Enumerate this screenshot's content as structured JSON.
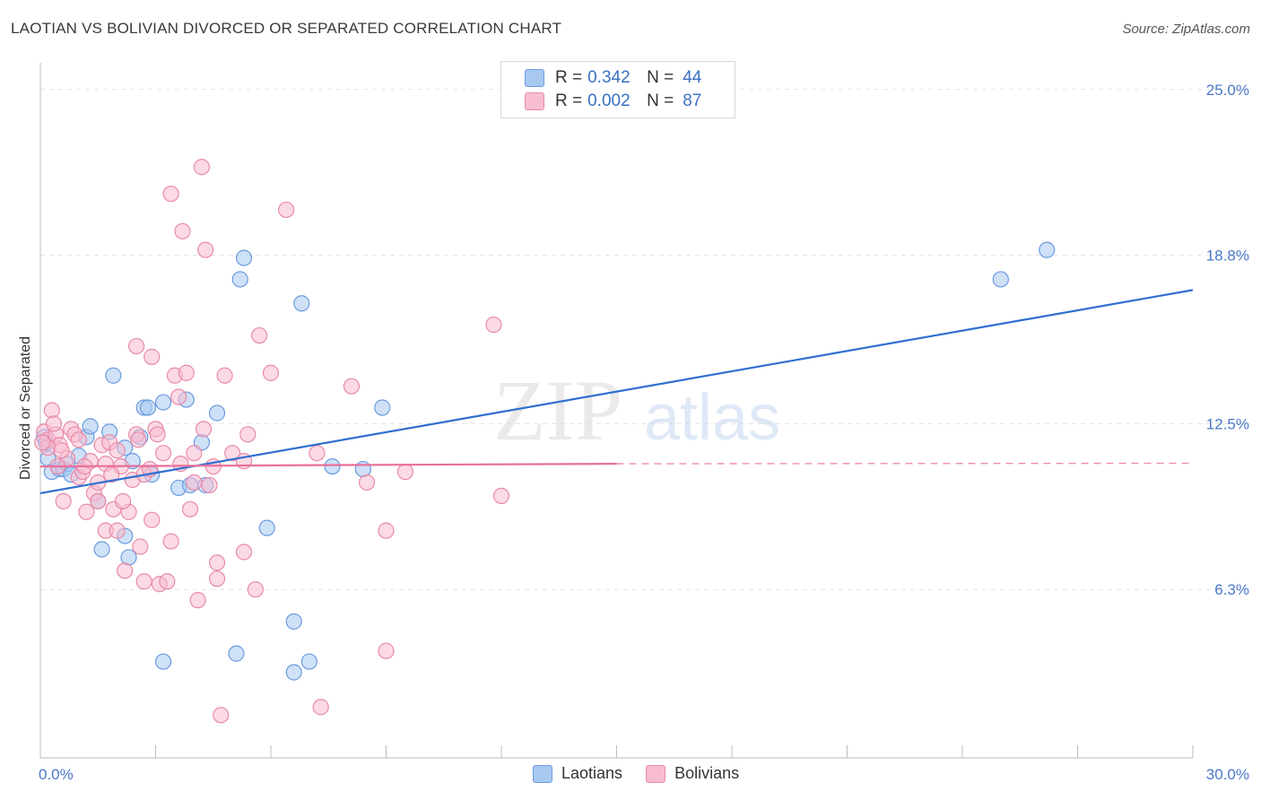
{
  "header": {
    "title": "LAOTIAN VS BOLIVIAN DIVORCED OR SEPARATED CORRELATION CHART",
    "source": "Source: ZipAtlas.com"
  },
  "legend": {
    "rows": [
      {
        "r_label": "R =",
        "r_value": "0.342",
        "n_label": "N =",
        "n_value": "44",
        "color": "#a8c8f0",
        "border": "#6a9be0"
      },
      {
        "r_label": "R =",
        "r_value": "0.002",
        "n_label": "N =",
        "n_value": "87",
        "color": "#f8bcd0",
        "border": "#e88aa8"
      }
    ],
    "bottom": [
      {
        "label": "Laotians",
        "color": "#a8c8f0",
        "border": "#6a9be0"
      },
      {
        "label": "Bolivians",
        "color": "#f8bcd0",
        "border": "#e88aa8"
      }
    ]
  },
  "watermark": {
    "zip": "ZIP",
    "atlas": "atlas"
  },
  "chart_data": {
    "type": "scatter",
    "title": "LAOTIAN VS BOLIVIAN DIVORCED OR SEPARATED CORRELATION CHART",
    "xlabel": "",
    "ylabel": "Divorced or Separated",
    "xlim": [
      0,
      30
    ],
    "ylim": [
      0,
      26
    ],
    "x_tick_labels": [
      "0.0%",
      "30.0%"
    ],
    "y_ticks": [
      6.3,
      12.5,
      18.8,
      25.0
    ],
    "y_tick_labels": [
      "6.3%",
      "12.5%",
      "18.8%",
      "25.0%"
    ],
    "grid": true,
    "legend_position": "top-center",
    "series": [
      {
        "name": "Laotians",
        "color": "#6a9be0",
        "fill": "#a8c8f0",
        "trend": {
          "x": [
            0,
            30
          ],
          "y": [
            9.9,
            17.5
          ],
          "color": "#2f6fd0"
        },
        "points": [
          [
            0.2,
            11.2
          ],
          [
            0.3,
            10.7
          ],
          [
            0.5,
            10.8
          ],
          [
            0.6,
            10.8
          ],
          [
            0.7,
            11.0
          ],
          [
            0.8,
            10.6
          ],
          [
            1.0,
            11.3
          ],
          [
            1.2,
            12.0
          ],
          [
            1.3,
            12.4
          ],
          [
            1.5,
            9.6
          ],
          [
            1.6,
            7.8
          ],
          [
            1.8,
            12.2
          ],
          [
            1.9,
            14.3
          ],
          [
            2.2,
            11.6
          ],
          [
            2.2,
            8.3
          ],
          [
            2.3,
            7.5
          ],
          [
            2.4,
            11.1
          ],
          [
            2.6,
            12.0
          ],
          [
            2.7,
            13.1
          ],
          [
            2.8,
            13.1
          ],
          [
            2.9,
            10.6
          ],
          [
            3.2,
            3.6
          ],
          [
            3.2,
            13.3
          ],
          [
            3.6,
            10.1
          ],
          [
            3.8,
            13.4
          ],
          [
            3.9,
            10.2
          ],
          [
            4.2,
            11.8
          ],
          [
            4.3,
            10.2
          ],
          [
            4.6,
            12.9
          ],
          [
            5.1,
            3.9
          ],
          [
            5.2,
            17.9
          ],
          [
            5.3,
            18.7
          ],
          [
            5.9,
            8.6
          ],
          [
            6.6,
            5.1
          ],
          [
            6.6,
            3.2
          ],
          [
            6.8,
            17.0
          ],
          [
            7.0,
            3.6
          ],
          [
            7.6,
            10.9
          ],
          [
            8.4,
            10.8
          ],
          [
            8.9,
            13.1
          ],
          [
            25.0,
            17.9
          ],
          [
            26.2,
            19.0
          ],
          [
            0.1,
            12.0
          ],
          [
            0.15,
            11.8
          ]
        ]
      },
      {
        "name": "Bolivians",
        "color": "#e88aa8",
        "fill": "#f8bcd0",
        "trend": {
          "x": [
            0,
            15
          ],
          "y": [
            10.9,
            11.0
          ],
          "dashed_to": 30,
          "color": "#e8709a"
        },
        "points": [
          [
            0.1,
            12.2
          ],
          [
            0.2,
            11.9
          ],
          [
            0.3,
            13.0
          ],
          [
            0.4,
            12.1
          ],
          [
            0.5,
            11.7
          ],
          [
            0.6,
            9.6
          ],
          [
            0.7,
            11.2
          ],
          [
            0.8,
            12.3
          ],
          [
            0.9,
            12.1
          ],
          [
            1.0,
            10.5
          ],
          [
            1.0,
            11.9
          ],
          [
            1.1,
            10.7
          ],
          [
            1.2,
            9.2
          ],
          [
            1.3,
            11.1
          ],
          [
            1.4,
            9.9
          ],
          [
            1.5,
            10.3
          ],
          [
            1.5,
            9.6
          ],
          [
            1.6,
            11.7
          ],
          [
            1.7,
            11.0
          ],
          [
            1.7,
            8.5
          ],
          [
            1.8,
            11.8
          ],
          [
            1.9,
            9.3
          ],
          [
            2.0,
            11.5
          ],
          [
            2.0,
            8.5
          ],
          [
            2.1,
            10.9
          ],
          [
            2.2,
            7.0
          ],
          [
            2.3,
            9.2
          ],
          [
            2.4,
            10.4
          ],
          [
            2.5,
            12.1
          ],
          [
            2.5,
            15.4
          ],
          [
            2.6,
            7.9
          ],
          [
            2.7,
            10.6
          ],
          [
            2.7,
            6.6
          ],
          [
            2.9,
            15.0
          ],
          [
            2.9,
            8.9
          ],
          [
            3.0,
            12.3
          ],
          [
            3.1,
            6.5
          ],
          [
            3.2,
            11.4
          ],
          [
            3.3,
            6.6
          ],
          [
            3.4,
            21.1
          ],
          [
            3.4,
            8.1
          ],
          [
            3.5,
            14.3
          ],
          [
            3.6,
            13.5
          ],
          [
            3.7,
            19.7
          ],
          [
            3.8,
            14.4
          ],
          [
            3.9,
            9.3
          ],
          [
            4.0,
            11.4
          ],
          [
            4.0,
            10.3
          ],
          [
            4.1,
            5.9
          ],
          [
            4.2,
            22.1
          ],
          [
            4.3,
            19.0
          ],
          [
            4.4,
            10.2
          ],
          [
            4.5,
            10.9
          ],
          [
            4.6,
            7.3
          ],
          [
            4.6,
            6.7
          ],
          [
            4.7,
            1.6
          ],
          [
            4.8,
            14.3
          ],
          [
            5.0,
            11.4
          ],
          [
            5.3,
            11.1
          ],
          [
            5.3,
            7.7
          ],
          [
            5.4,
            12.1
          ],
          [
            5.6,
            6.3
          ],
          [
            5.7,
            15.8
          ],
          [
            6.0,
            14.4
          ],
          [
            6.4,
            20.5
          ],
          [
            7.2,
            11.4
          ],
          [
            7.3,
            1.9
          ],
          [
            8.1,
            13.9
          ],
          [
            8.5,
            10.3
          ],
          [
            9.0,
            8.5
          ],
          [
            9.0,
            4.0
          ],
          [
            9.5,
            10.7
          ],
          [
            11.8,
            16.2
          ],
          [
            12.0,
            9.8
          ],
          [
            0.2,
            11.6
          ],
          [
            0.35,
            12.5
          ],
          [
            0.55,
            11.5
          ],
          [
            1.15,
            10.9
          ],
          [
            1.85,
            10.6
          ],
          [
            2.15,
            9.6
          ],
          [
            2.55,
            11.9
          ],
          [
            2.85,
            10.8
          ],
          [
            3.05,
            12.1
          ],
          [
            3.65,
            11.0
          ],
          [
            4.25,
            12.3
          ],
          [
            0.05,
            11.8
          ],
          [
            0.45,
            10.9
          ]
        ]
      }
    ]
  }
}
